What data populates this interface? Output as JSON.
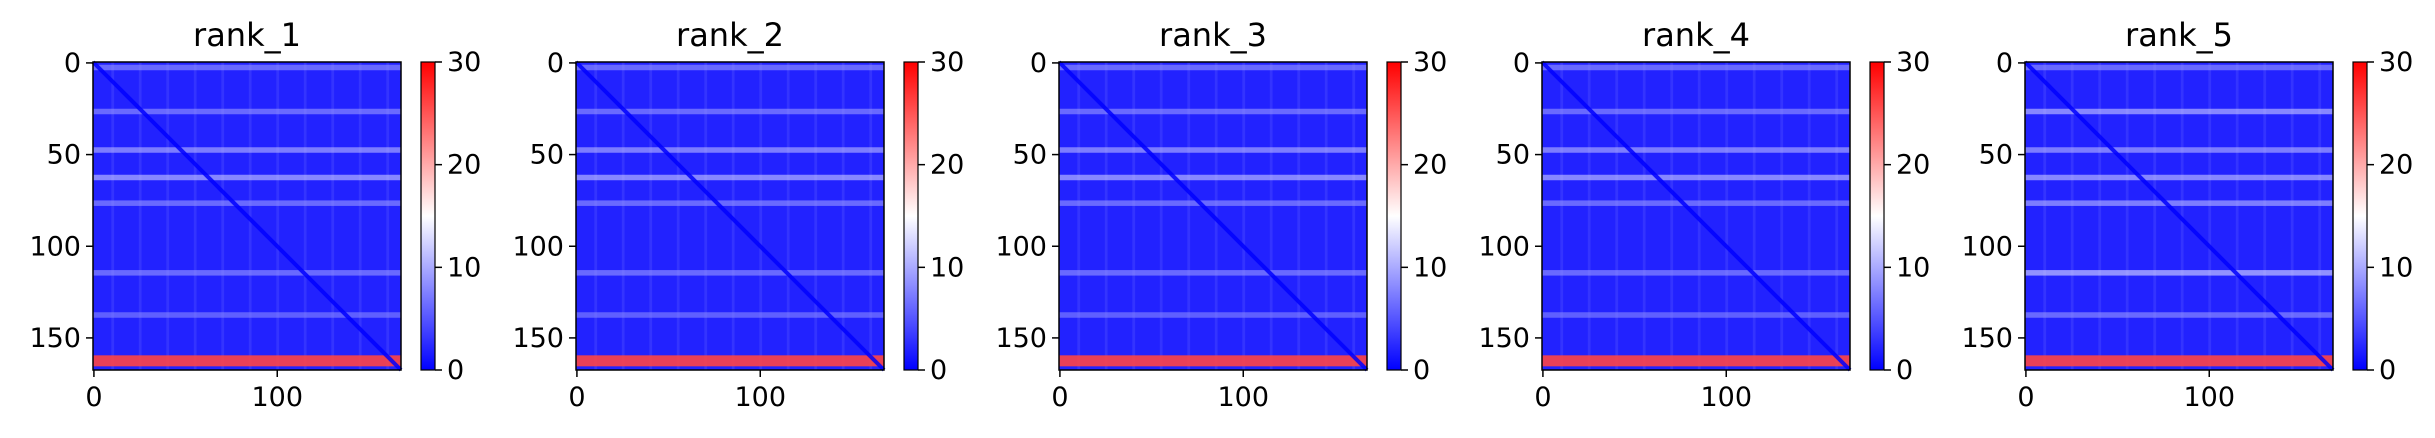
{
  "chart_data": [
    {
      "type": "heatmap",
      "title": "rank_1",
      "matrix_size": 168,
      "xticks": [
        0,
        100
      ],
      "yticks": [
        0,
        50,
        100,
        150
      ],
      "colorbar_ticks": [
        0,
        10,
        20,
        30
      ],
      "vmin": 0,
      "vmax": 30,
      "colormap": [
        "#0000ff",
        "#ffffff",
        "#ff0000"
      ],
      "banded_rows": [
        {
          "row": 3,
          "value": 9
        },
        {
          "row": 27,
          "value": 9
        },
        {
          "row": 48,
          "value": 11
        },
        {
          "row": 63,
          "value": 12
        },
        {
          "row": 77,
          "value": 9
        },
        {
          "row": 115,
          "value": 9
        },
        {
          "row": 138,
          "value": 8
        },
        {
          "row": 163,
          "value": 26
        }
      ],
      "grid": false,
      "legend": "colorbar-right"
    },
    {
      "type": "heatmap",
      "title": "rank_2",
      "matrix_size": 168,
      "xticks": [
        0,
        100
      ],
      "yticks": [
        0,
        50,
        100,
        150
      ],
      "colorbar_ticks": [
        0,
        10,
        20,
        30
      ],
      "vmin": 0,
      "vmax": 30,
      "colormap": [
        "#0000ff",
        "#ffffff",
        "#ff0000"
      ],
      "banded_rows": [
        {
          "row": 3,
          "value": 9
        },
        {
          "row": 27,
          "value": 9
        },
        {
          "row": 48,
          "value": 11
        },
        {
          "row": 63,
          "value": 12
        },
        {
          "row": 77,
          "value": 9
        },
        {
          "row": 115,
          "value": 9
        },
        {
          "row": 138,
          "value": 8
        },
        {
          "row": 163,
          "value": 26
        }
      ],
      "grid": false,
      "legend": "colorbar-right"
    },
    {
      "type": "heatmap",
      "title": "rank_3",
      "matrix_size": 168,
      "xticks": [
        0,
        100
      ],
      "yticks": [
        0,
        50,
        100,
        150
      ],
      "colorbar_ticks": [
        0,
        10,
        20,
        30
      ],
      "vmin": 0,
      "vmax": 30,
      "colormap": [
        "#0000ff",
        "#ffffff",
        "#ff0000"
      ],
      "banded_rows": [
        {
          "row": 3,
          "value": 9
        },
        {
          "row": 27,
          "value": 9
        },
        {
          "row": 48,
          "value": 11
        },
        {
          "row": 63,
          "value": 12
        },
        {
          "row": 77,
          "value": 9
        },
        {
          "row": 115,
          "value": 9
        },
        {
          "row": 138,
          "value": 8
        },
        {
          "row": 163,
          "value": 26
        }
      ],
      "grid": false,
      "legend": "colorbar-right"
    },
    {
      "type": "heatmap",
      "title": "rank_4",
      "matrix_size": 168,
      "xticks": [
        0,
        100
      ],
      "yticks": [
        0,
        50,
        100,
        150
      ],
      "colorbar_ticks": [
        0,
        10,
        20,
        30
      ],
      "vmin": 0,
      "vmax": 30,
      "colormap": [
        "#0000ff",
        "#ffffff",
        "#ff0000"
      ],
      "banded_rows": [
        {
          "row": 3,
          "value": 9
        },
        {
          "row": 27,
          "value": 9
        },
        {
          "row": 48,
          "value": 11
        },
        {
          "row": 63,
          "value": 12
        },
        {
          "row": 77,
          "value": 9
        },
        {
          "row": 115,
          "value": 9
        },
        {
          "row": 138,
          "value": 8
        },
        {
          "row": 163,
          "value": 26
        }
      ],
      "grid": false,
      "legend": "colorbar-right"
    },
    {
      "type": "heatmap",
      "title": "rank_5",
      "matrix_size": 168,
      "xticks": [
        0,
        100
      ],
      "yticks": [
        0,
        50,
        100,
        150
      ],
      "colorbar_ticks": [
        0,
        10,
        20,
        30
      ],
      "vmin": 0,
      "vmax": 30,
      "colormap": [
        "#0000ff",
        "#ffffff",
        "#ff0000"
      ],
      "banded_rows": [
        {
          "row": 3,
          "value": 9
        },
        {
          "row": 27,
          "value": 12
        },
        {
          "row": 48,
          "value": 11
        },
        {
          "row": 63,
          "value": 12
        },
        {
          "row": 77,
          "value": 11
        },
        {
          "row": 115,
          "value": 13
        },
        {
          "row": 138,
          "value": 9
        },
        {
          "row": 163,
          "value": 26
        }
      ],
      "grid": false,
      "legend": "colorbar-right"
    }
  ]
}
